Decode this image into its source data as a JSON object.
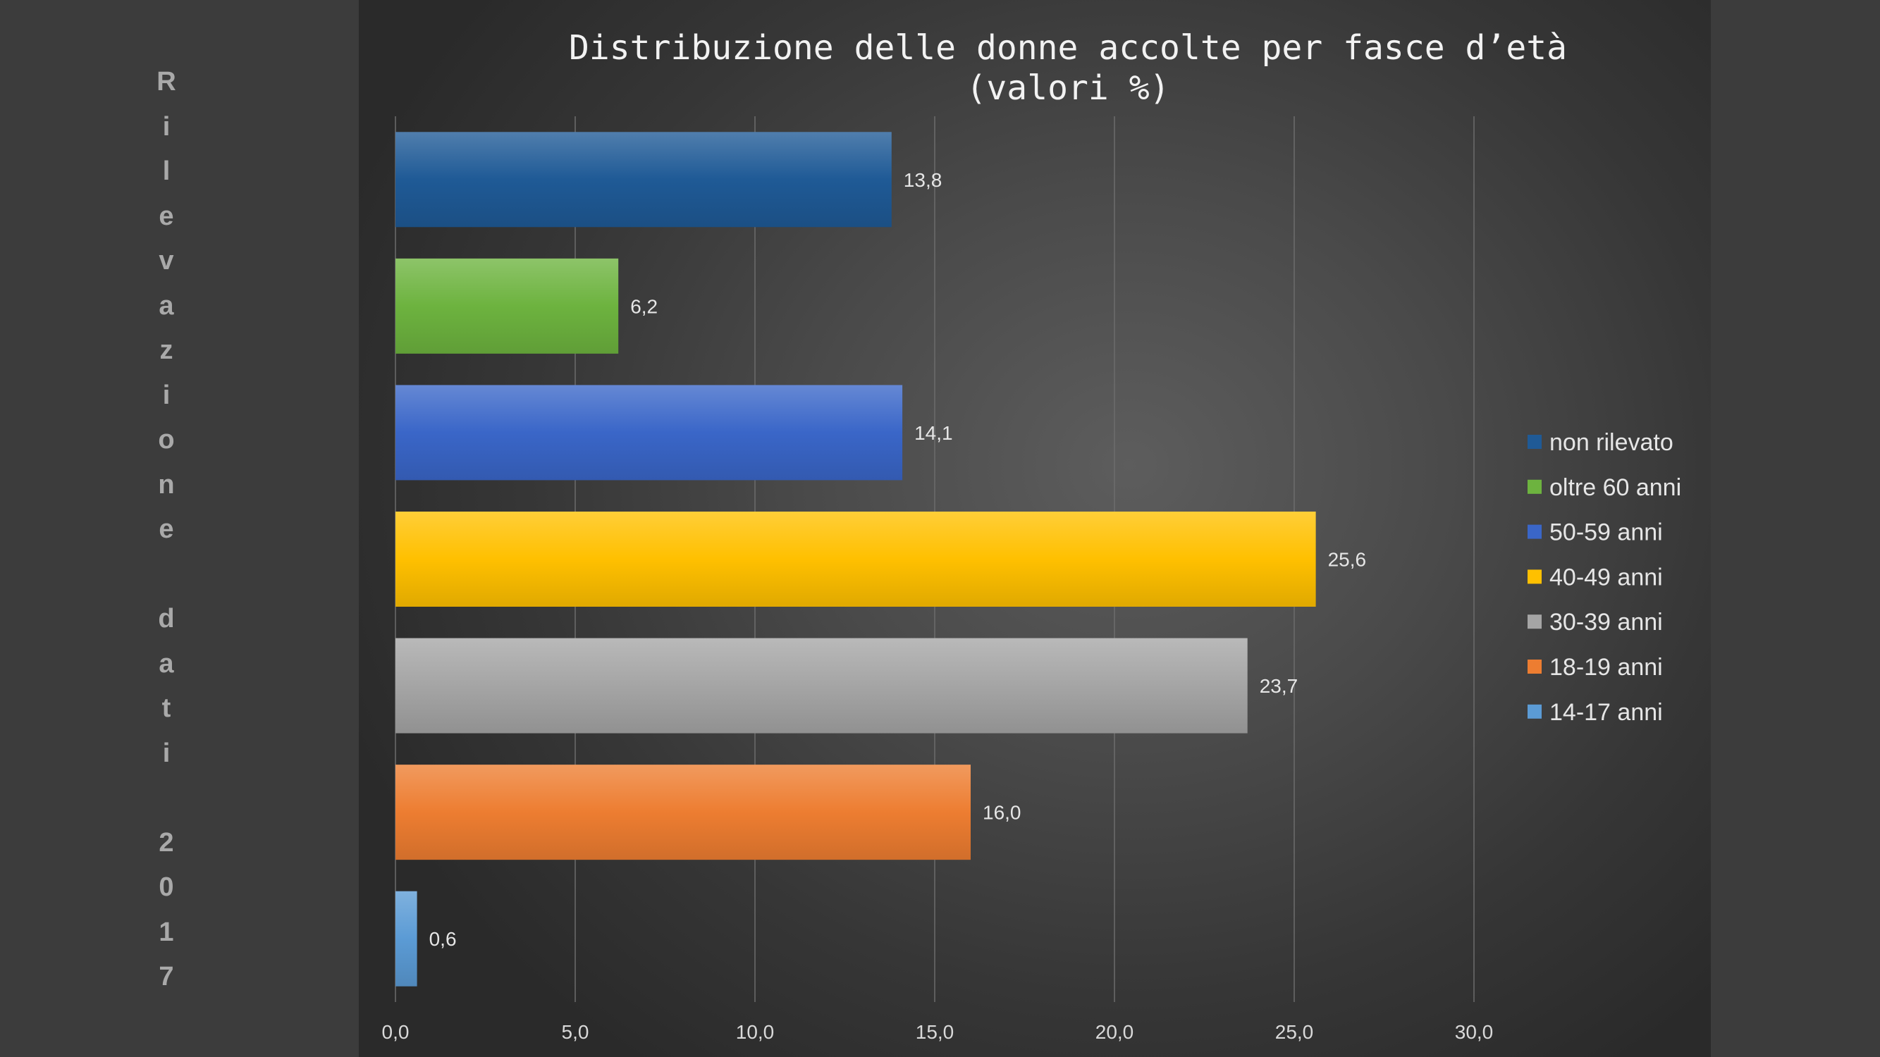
{
  "side_caption": [
    "R",
    "i",
    "l",
    "e",
    "v",
    "a",
    "z",
    "i",
    "o",
    "n",
    "e",
    "",
    "d",
    "a",
    "t",
    "i",
    "",
    "2",
    "0",
    "1",
    "7"
  ],
  "chart_data": {
    "type": "bar",
    "orientation": "horizontal",
    "title_lines": [
      "Distribuzione delle donne accolte per fasce d’età",
      "(valori %)"
    ],
    "xlabel": "",
    "ylabel": "",
    "xlim": [
      0,
      30
    ],
    "x_ticks": [
      "0,0",
      "5,0",
      "10,0",
      "15,0",
      "20,0",
      "25,0",
      "30,0"
    ],
    "grid": "vertical",
    "legend_position": "right",
    "series": [
      {
        "name": "non rilevato",
        "value": 13.8,
        "label": "13,8",
        "color": "#1f5a96"
      },
      {
        "name": "oltre 60 anni",
        "value": 6.2,
        "label": "6,2",
        "color": "#6db33f"
      },
      {
        "name": "50-59 anni",
        "value": 14.1,
        "label": "14,1",
        "color": "#3a66c8"
      },
      {
        "name": "40-49 anni",
        "value": 25.6,
        "label": "25,6",
        "color": "#ffc000"
      },
      {
        "name": "30-39 anni",
        "value": 23.7,
        "label": "23,7",
        "color": "#a5a5a5"
      },
      {
        "name": "18-19 anni",
        "value": 16.0,
        "label": "16,0",
        "color": "#ed7d31"
      },
      {
        "name": "14-17 anni",
        "value": 0.6,
        "label": "0,6",
        "color": "#5b9bd5"
      }
    ]
  }
}
